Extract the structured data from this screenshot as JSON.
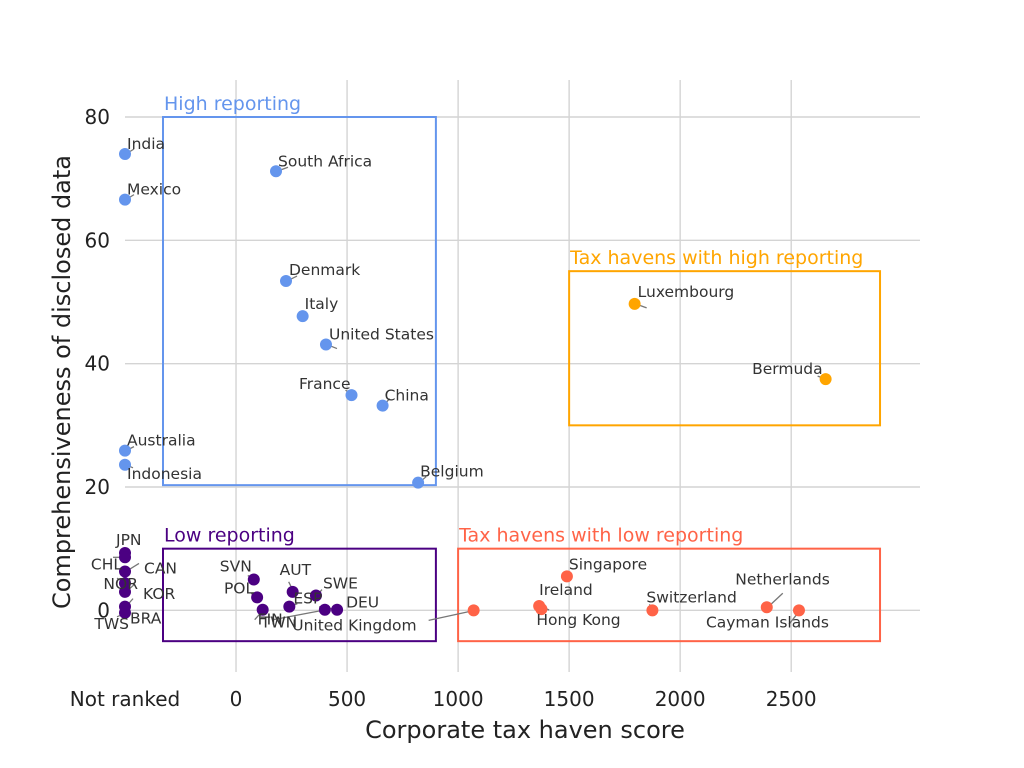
{
  "chart_data": {
    "type": "scatter",
    "title": "",
    "xlabel": "Corporate tax haven score",
    "ylabel": "Comprehensiveness of disclosed data",
    "xlim": [
      -500,
      3080
    ],
    "ylim": [
      -10,
      86
    ],
    "x_ticks": [
      {
        "value": -500,
        "label": "Not ranked"
      },
      {
        "value": 0,
        "label": "0"
      },
      {
        "value": 500,
        "label": "500"
      },
      {
        "value": 1000,
        "label": "1000"
      },
      {
        "value": 1500,
        "label": "1500"
      },
      {
        "value": 2000,
        "label": "2000"
      },
      {
        "value": 2500,
        "label": "2500"
      }
    ],
    "y_ticks": [
      0,
      20,
      40,
      60,
      80
    ],
    "grid": true,
    "legend": "none",
    "groups": [
      {
        "name": "High reporting",
        "color": "#6495ED",
        "box": {
          "x": [
            -700,
            900
          ],
          "y": [
            20.3,
            80
          ]
        },
        "points": [
          {
            "label": "India",
            "x": -500,
            "y": 74
          },
          {
            "label": "Mexico",
            "x": -500,
            "y": 66.6
          },
          {
            "label": "South Africa",
            "x": 180,
            "y": 71.2
          },
          {
            "label": "Denmark",
            "x": 225,
            "y": 53.4
          },
          {
            "label": "Italy",
            "x": 300,
            "y": 47.7
          },
          {
            "label": "United States",
            "x": 405,
            "y": 43.1
          },
          {
            "label": "France",
            "x": 520,
            "y": 34.9
          },
          {
            "label": "China",
            "x": 660,
            "y": 33.2
          },
          {
            "label": "Australia",
            "x": -500,
            "y": 25.9
          },
          {
            "label": "Indonesia",
            "x": -500,
            "y": 23.6
          },
          {
            "label": "Belgium",
            "x": 820,
            "y": 20.7
          }
        ]
      },
      {
        "name": "Tax havens with high reporting",
        "color": "#FFA500",
        "box": {
          "x": [
            1500,
            2900
          ],
          "y": [
            30,
            55
          ]
        },
        "points": [
          {
            "label": "Luxembourg",
            "x": 1795,
            "y": 49.7
          },
          {
            "label": "Bermuda",
            "x": 2655,
            "y": 37.5
          }
        ]
      },
      {
        "name": "Low reporting",
        "color": "#4B0082",
        "box": {
          "x": [
            -700,
            900
          ],
          "y": [
            -5,
            10
          ]
        },
        "points": [
          {
            "label": "JPN",
            "x": -500,
            "y": 9.3
          },
          {
            "label": "CHL",
            "x": -500,
            "y": 8.6
          },
          {
            "label": "CAN",
            "x": -500,
            "y": 6.3
          },
          {
            "label": "NOR",
            "x": -500,
            "y": 4.4
          },
          {
            "label": "KOR",
            "x": -500,
            "y": 3.0
          },
          {
            "label": "BRA",
            "x": -500,
            "y": 0.6
          },
          {
            "label": "TWS",
            "x": -500,
            "y": -0.4
          },
          {
            "label": "SVN",
            "x": 80,
            "y": 5.0
          },
          {
            "label": "POL",
            "x": 95,
            "y": 2.1
          },
          {
            "label": "AUT",
            "x": 255,
            "y": 3.0
          },
          {
            "label": "SWE",
            "x": 360,
            "y": 2.4
          },
          {
            "label": "ESP",
            "x": 240,
            "y": 0.6
          },
          {
            "label": "FIN",
            "x": 120,
            "y": 0.1
          },
          {
            "label": "TWN",
            "x": 400,
            "y": 0.1
          },
          {
            "label": "DEU",
            "x": 455,
            "y": 0.1
          }
        ]
      },
      {
        "name": "Tax havens with low reporting",
        "color": "#FF6347",
        "box": {
          "x": [
            1000,
            2900
          ],
          "y": [
            -5,
            10
          ]
        },
        "points": [
          {
            "label": "United Kingdom",
            "x": 1070,
            "y": 0
          },
          {
            "label": "Singapore",
            "x": 1490,
            "y": 5.5
          },
          {
            "label": "Ireland",
            "x": 1365,
            "y": 0.7
          },
          {
            "label": "Hong Kong",
            "x": 1375,
            "y": 0.2
          },
          {
            "label": "Switzerland",
            "x": 1875,
            "y": 0
          },
          {
            "label": "Netherlands",
            "x": 2390,
            "y": 0.5
          },
          {
            "label": "Cayman Islands",
            "x": 2535,
            "y": 0
          }
        ]
      }
    ]
  }
}
